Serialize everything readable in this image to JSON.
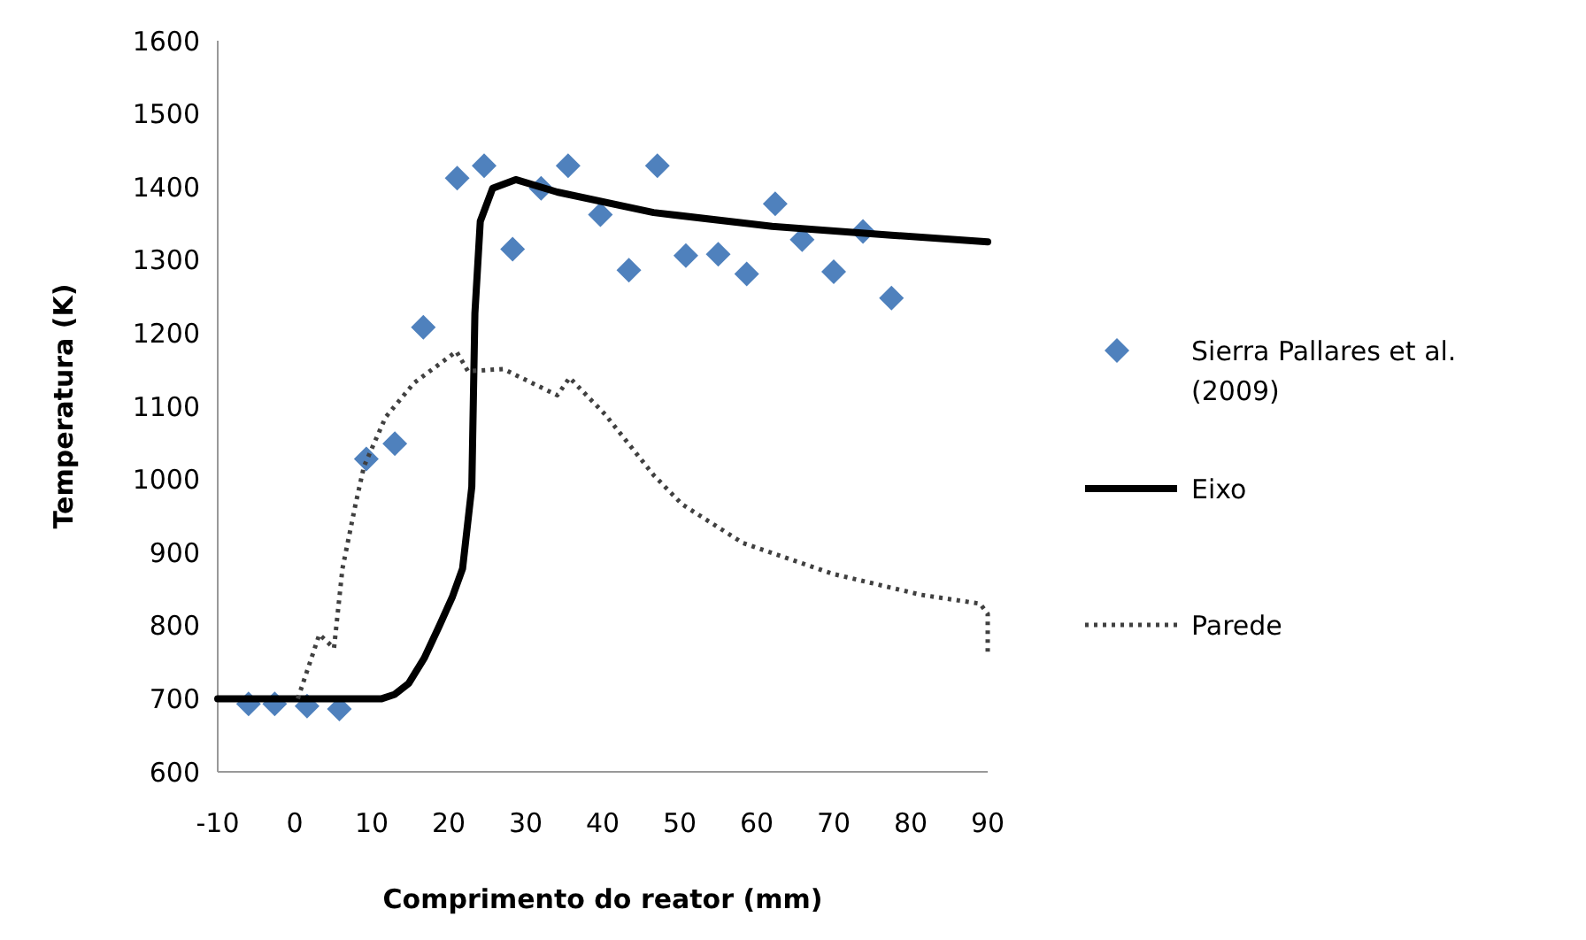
{
  "chart_data": {
    "type": "line",
    "xlabel": "Comprimento do reator (mm)",
    "ylabel": "Temperatura (K)",
    "xlim": [
      -10,
      90
    ],
    "ylim": [
      600,
      1600
    ],
    "xticks": [
      -10,
      0,
      10,
      20,
      30,
      40,
      50,
      60,
      70,
      80,
      90
    ],
    "yticks": [
      600,
      700,
      800,
      900,
      1000,
      1100,
      1200,
      1300,
      1400,
      1500,
      1600
    ],
    "grid": false,
    "legend": "right",
    "series": [
      {
        "name": "Sierra Pallares et al. (2009)",
        "type": "scatter",
        "marker": "diamond",
        "color": "#4f81bd",
        "x": [
          -6,
          -2.6,
          1.6,
          5.8,
          9.3,
          13,
          16.7,
          21.1,
          24.6,
          28.3,
          32,
          35.5,
          39.7,
          43.4,
          47.1,
          50.8,
          55,
          58.7,
          62.4,
          65.9,
          70,
          73.8,
          77.5
        ],
        "values": [
          693,
          693,
          690,
          686,
          1028,
          1049,
          1208,
          1412,
          1429,
          1315,
          1398,
          1429,
          1362,
          1286,
          1429,
          1306,
          1308,
          1281,
          1377,
          1328,
          1284,
          1339,
          1248
        ]
      },
      {
        "name": "Eixo",
        "line_style": "solid",
        "marker": "none",
        "color": "#000000",
        "x": [
          -10,
          11.3,
          13,
          14.8,
          16.8,
          18.8,
          20.5,
          21.8,
          23,
          23.4,
          24.1,
          25.7,
          28.7,
          34.1,
          46.6,
          62,
          77.5,
          90
        ],
        "values": [
          700,
          700,
          706,
          721,
          755,
          800,
          840,
          878,
          990,
          1227,
          1353,
          1398,
          1410,
          1393,
          1365,
          1346,
          1334,
          1325
        ]
      },
      {
        "name": "Parede",
        "line_style": "dotted",
        "marker": "none",
        "color": "#404040",
        "x": [
          0.4,
          3.2,
          5.1,
          6.2,
          7.9,
          9,
          11.8,
          15.5,
          21,
          22.5,
          27.1,
          34.1,
          35.7,
          40.3,
          46.6,
          50.3,
          58.2,
          69.8,
          81.4,
          89,
          90,
          90
        ],
        "values": [
          700,
          788,
          769,
          878,
          966,
          1018,
          1085,
          1132,
          1175,
          1148,
          1151,
          1115,
          1139,
          1089,
          1006,
          966,
          913,
          871,
          842,
          830,
          816,
          764
        ]
      }
    ]
  }
}
